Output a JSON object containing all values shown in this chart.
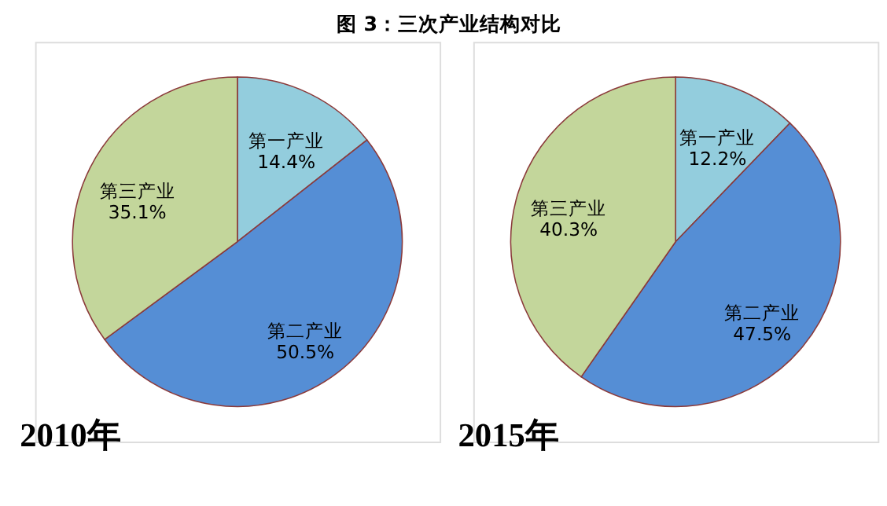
{
  "chart_data": [
    {
      "type": "pie",
      "title": "图 3：三次产业结构对比",
      "categories": [
        "第一产业",
        "第二产业",
        "第三产业"
      ],
      "values": [
        14.4,
        50.5,
        35.1
      ],
      "value_labels": [
        "14.4%",
        "50.5%",
        "35.1%"
      ],
      "colors": [
        "#93cddd",
        "#558ed5",
        "#c3d69b"
      ],
      "annotations": [
        "2010年"
      ],
      "legend": false
    },
    {
      "type": "pie",
      "categories": [
        "第一产业",
        "第二产业",
        "第三产业"
      ],
      "values": [
        12.2,
        47.5,
        40.3
      ],
      "value_labels": [
        "12.2%",
        "47.5%",
        "40.3%"
      ],
      "colors": [
        "#93cddd",
        "#558ed5",
        "#c3d69b"
      ],
      "annotations": [
        "2015年"
      ],
      "legend": false
    }
  ]
}
